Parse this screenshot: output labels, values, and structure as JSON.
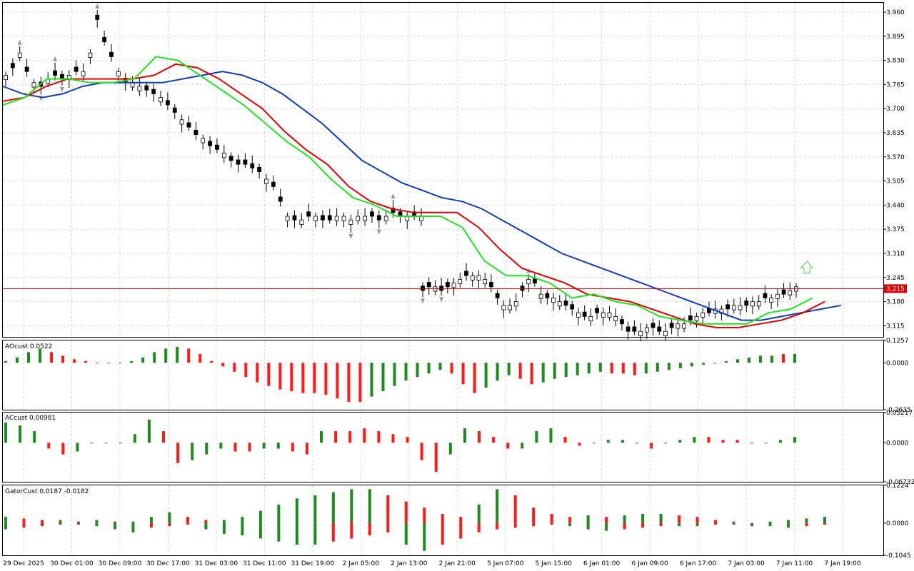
{
  "colors": {
    "up": "#1f8a1f",
    "down": "#ff1a1a",
    "jaw": "#0b3fbf",
    "teeth": "#e60000",
    "lips": "#1ee61e",
    "price_line": "#c00000",
    "price_label_bg": "#e00000",
    "grid": "#d9d9d9",
    "fractal": "#999999",
    "arrow": "#66dd66"
  },
  "chart_data": [
    {
      "type": "candlestick",
      "name": "price",
      "ylim": [
        3.085,
        3.985
      ],
      "y_ticks": [
        "3.960",
        "3.895",
        "3.830",
        "3.765",
        "3.700",
        "3.635",
        "3.570",
        "3.505",
        "3.440",
        "3.375",
        "3.310",
        "3.245",
        "3.180",
        "3.115"
      ],
      "current_price": "3.215",
      "x_tick_labels": [
        "29 Dec 2025",
        "30 Dec 01:00",
        "30 Dec 09:00",
        "30 Dec 17:00",
        "31 Dec 03:00",
        "31 Dec 11:00",
        "31 Dec 19:00",
        "2 Jan 05:00",
        "2 Jan 13:00",
        "2 Jan 21:00",
        "5 Jan 07:00",
        "5 Jan 15:00",
        "6 Jan 01:00",
        "6 Jan 09:00",
        "6 Jan 17:00",
        "7 Jan 03:00",
        "7 Jan 11:00",
        "7 Jan 19:00"
      ],
      "candles": [
        3.79,
        3.81,
        3.85,
        3.8,
        3.77,
        3.76,
        3.78,
        3.79,
        3.78,
        3.79,
        3.8,
        3.8,
        3.85,
        3.94,
        3.88,
        3.84,
        3.8,
        3.77,
        3.77,
        3.76,
        3.75,
        3.74,
        3.73,
        3.71,
        3.69,
        3.67,
        3.65,
        3.63,
        3.62,
        3.6,
        3.59,
        3.58,
        3.56,
        3.55,
        3.55,
        3.54,
        3.53,
        3.51,
        3.49,
        3.45,
        3.41,
        3.4,
        3.4,
        3.41,
        3.41,
        3.4,
        3.4,
        3.41,
        3.41,
        3.4,
        3.41,
        3.41,
        3.41,
        3.4,
        3.41,
        3.42,
        3.41,
        3.41,
        3.41,
        3.41,
        3.21,
        3.22,
        3.22,
        3.21,
        3.22,
        3.23,
        3.24,
        3.25,
        3.25,
        3.25,
        3.24,
        3.22,
        3.19,
        3.17,
        3.17,
        3.18,
        3.21,
        3.24,
        3.23,
        3.2,
        3.19,
        3.19,
        3.18,
        3.17,
        3.16,
        3.15,
        3.14,
        3.14,
        3.15,
        3.15,
        3.15,
        3.14,
        3.12,
        3.1,
        3.1,
        3.1,
        3.11,
        3.11,
        3.1,
        3.1,
        3.11,
        3.12,
        3.12,
        3.13,
        3.14,
        3.15,
        3.15,
        3.16,
        3.16,
        3.16,
        3.17,
        3.17,
        3.17,
        3.18,
        3.18,
        3.19,
        3.19,
        3.2,
        3.2,
        3.21,
        3.22
      ],
      "alligator": {
        "jaw": [
          3.76,
          3.74,
          3.73,
          3.74,
          3.76,
          3.77,
          3.77,
          3.77,
          3.77,
          3.78,
          3.79,
          3.8,
          3.79,
          3.77,
          3.74,
          3.7,
          3.66,
          3.61,
          3.56,
          3.53,
          3.5,
          3.48,
          3.46,
          3.45,
          3.43,
          3.4,
          3.37,
          3.34,
          3.31,
          3.29,
          3.27,
          3.25,
          3.23,
          3.21,
          3.19,
          3.17,
          3.15,
          3.13,
          3.13,
          3.14,
          3.15,
          3.16,
          3.17
        ],
        "teeth": [
          3.72,
          3.73,
          3.76,
          3.78,
          3.78,
          3.78,
          3.78,
          3.79,
          3.82,
          3.81,
          3.78,
          3.74,
          3.7,
          3.64,
          3.59,
          3.55,
          3.49,
          3.45,
          3.43,
          3.42,
          3.42,
          3.42,
          3.38,
          3.32,
          3.27,
          3.25,
          3.23,
          3.2,
          3.19,
          3.18,
          3.16,
          3.14,
          3.12,
          3.11,
          3.11,
          3.12,
          3.13,
          3.15,
          3.18
        ],
        "lips": [
          3.71,
          3.73,
          3.78,
          3.78,
          3.77,
          3.77,
          3.78,
          3.84,
          3.83,
          3.79,
          3.75,
          3.71,
          3.66,
          3.61,
          3.57,
          3.51,
          3.46,
          3.44,
          3.41,
          3.41,
          3.41,
          3.38,
          3.29,
          3.25,
          3.25,
          3.23,
          3.19,
          3.2,
          3.18,
          3.17,
          3.14,
          3.13,
          3.12,
          3.12,
          3.12,
          3.15,
          3.16,
          3.19
        ]
      }
    },
    {
      "type": "bar",
      "name": "AOcust",
      "label": "AOcust 0.0522",
      "ylim": [
        -0.2635,
        0.1257
      ],
      "y_ticks": [
        "0.1257",
        "0.0000",
        "-0.2635"
      ],
      "values": [
        0.01,
        0.03,
        0.06,
        0.08,
        0.06,
        0.04,
        0.02,
        0.01,
        0.0,
        0.0,
        0.0,
        0.01,
        0.03,
        0.06,
        0.08,
        0.09,
        0.08,
        0.05,
        0.01,
        -0.02,
        -0.05,
        -0.08,
        -0.11,
        -0.13,
        -0.15,
        -0.16,
        -0.17,
        -0.17,
        -0.18,
        -0.2,
        -0.22,
        -0.22,
        -0.19,
        -0.16,
        -0.13,
        -0.1,
        -0.08,
        -0.06,
        -0.04,
        -0.06,
        -0.12,
        -0.17,
        -0.14,
        -0.1,
        -0.07,
        -0.09,
        -0.12,
        -0.11,
        -0.09,
        -0.08,
        -0.07,
        -0.06,
        -0.05,
        -0.06,
        -0.06,
        -0.07,
        -0.06,
        -0.05,
        -0.04,
        -0.03,
        -0.02,
        -0.01,
        0.0,
        0.01,
        0.02,
        0.03,
        0.04,
        0.04,
        0.05,
        0.05
      ],
      "colors": [
        "up",
        "up",
        "up",
        "up",
        "down",
        "down",
        "down",
        "down",
        "up",
        "up",
        "up",
        "up",
        "up",
        "up",
        "up",
        "up",
        "down",
        "down",
        "down",
        "down",
        "down",
        "down",
        "down",
        "down",
        "down",
        "down",
        "down",
        "down",
        "down",
        "down",
        "down",
        "down",
        "up",
        "up",
        "up",
        "up",
        "up",
        "up",
        "up",
        "down",
        "down",
        "down",
        "up",
        "up",
        "up",
        "down",
        "down",
        "up",
        "up",
        "up",
        "up",
        "up",
        "up",
        "down",
        "down",
        "down",
        "up",
        "up",
        "up",
        "up",
        "up",
        "up",
        "up",
        "up",
        "up",
        "up",
        "up",
        "up",
        "down",
        "up"
      ]
    },
    {
      "type": "bar",
      "name": "ACcust",
      "label": "ACcust 0.00981",
      "ylim": [
        -0.06732,
        0.05217
      ],
      "y_ticks": [
        "0.05217",
        "0.0000",
        "-0.06732"
      ],
      "values": [
        0.035,
        0.03,
        0.02,
        -0.01,
        -0.02,
        -0.015,
        0.0,
        0.0,
        0.0,
        0.015,
        0.04,
        0.02,
        -0.035,
        -0.03,
        -0.02,
        -0.01,
        -0.015,
        -0.015,
        -0.01,
        -0.01,
        -0.015,
        -0.02,
        0.02,
        0.02,
        0.02,
        0.025,
        0.02,
        0.015,
        0.01,
        -0.03,
        -0.05,
        -0.02,
        0.025,
        0.02,
        0.01,
        -0.01,
        -0.01,
        0.02,
        0.025,
        0.01,
        -0.005,
        0.0,
        0.005,
        0.005,
        0.0,
        -0.01,
        0.0,
        0.005,
        0.01,
        0.01,
        0.005,
        0.005,
        0.0,
        0.0,
        0.005,
        0.01
      ],
      "colors": [
        "up",
        "up",
        "up",
        "down",
        "down",
        "up",
        "up",
        "up",
        "up",
        "up",
        "up",
        "down",
        "down",
        "up",
        "up",
        "up",
        "down",
        "down",
        "up",
        "up",
        "down",
        "down",
        "up",
        "down",
        "down",
        "down",
        "down",
        "down",
        "down",
        "down",
        "down",
        "up",
        "up",
        "down",
        "down",
        "down",
        "up",
        "up",
        "up",
        "down",
        "down",
        "up",
        "up",
        "up",
        "down",
        "down",
        "up",
        "up",
        "up",
        "down",
        "down",
        "down",
        "down",
        "up",
        "up",
        "up"
      ]
    },
    {
      "type": "bar",
      "name": "GatorCust",
      "label": "GatorCust 0.0187 -0.0182",
      "ylim": [
        -0.1045,
        0.1224
      ],
      "y_ticks": [
        "0.1224",
        "0.0000",
        "-0.1045"
      ],
      "upper_values": [
        0.02,
        0.015,
        0.01,
        0.01,
        0.005,
        0.01,
        0.005,
        0.005,
        0.02,
        0.035,
        0.02,
        0.01,
        0.01,
        0.02,
        0.04,
        0.06,
        0.08,
        0.09,
        0.1,
        0.11,
        0.11,
        0.09,
        0.07,
        0.05,
        0.03,
        0.02,
        0.06,
        0.11,
        0.09,
        0.05,
        0.03,
        0.02,
        0.025,
        0.02,
        0.025,
        0.03,
        0.03,
        0.025,
        0.02,
        0.01,
        0.005,
        0.0,
        0.005,
        0.01,
        0.015,
        0.02
      ],
      "lower_values": [
        -0.02,
        -0.015,
        -0.01,
        -0.005,
        -0.005,
        -0.01,
        -0.02,
        -0.03,
        -0.015,
        -0.01,
        -0.005,
        -0.02,
        -0.035,
        -0.04,
        -0.05,
        -0.06,
        -0.07,
        -0.07,
        -0.06,
        -0.05,
        -0.04,
        -0.03,
        -0.07,
        -0.09,
        -0.07,
        -0.05,
        -0.03,
        -0.02,
        -0.015,
        -0.01,
        -0.005,
        -0.01,
        -0.02,
        -0.025,
        -0.02,
        -0.015,
        -0.01,
        -0.01,
        -0.01,
        -0.005,
        -0.005,
        -0.01,
        -0.01,
        -0.015,
        -0.01,
        -0.005
      ]
    }
  ]
}
